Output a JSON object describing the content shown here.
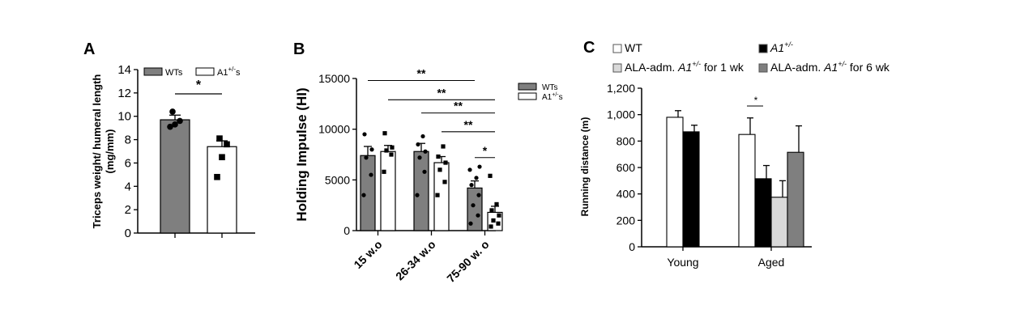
{
  "panels": {
    "a": "A",
    "b": "B",
    "c": "C"
  },
  "chart_data": [
    {
      "type": "bar",
      "panel": "A",
      "ylabel": "Triceps weight/ humeral length\n(mg/mm)",
      "ylim": [
        0,
        14
      ],
      "yticks": [
        0,
        2,
        4,
        6,
        8,
        10,
        12,
        14
      ],
      "categories": [
        "WTs",
        "A1+/-s"
      ],
      "values": [
        9.7,
        7.4
      ],
      "errors": [
        0.4,
        0.5
      ],
      "colors": [
        "#7f7f7f",
        "#ffffff"
      ],
      "legend": [
        {
          "label": "WTs",
          "sup": "",
          "suffix": ""
        },
        {
          "label": "A1",
          "sup": "+/-",
          "suffix": "s"
        }
      ],
      "points": [
        [
          9.1,
          9.3,
          9.6,
          10.4
        ],
        [
          4.8,
          6.5,
          7.6,
          8.1
        ]
      ],
      "markers": [
        "circle",
        "square"
      ],
      "significance": [
        {
          "between": [
            0,
            1
          ],
          "label": "*"
        }
      ]
    },
    {
      "type": "bar",
      "panel": "B",
      "ylabel": "Holding Impulse (HI)",
      "ylim": [
        0,
        15000
      ],
      "yticks": [
        0,
        5000,
        10000,
        15000
      ],
      "categories": [
        "15 w.o",
        "26-34 w.o",
        "75-90 w. o"
      ],
      "series": [
        {
          "name": "WTs",
          "values": [
            7400,
            7800,
            4200
          ],
          "errors": [
            900,
            800,
            700
          ],
          "color": "#7f7f7f",
          "points": [
            [
              3500,
              5500,
              7200,
              8000,
              9500
            ],
            [
              3500,
              5800,
              7200,
              7800,
              8500,
              9300
            ],
            [
              700,
              1500,
              2500,
              3500,
              4500,
              5200,
              6000,
              6300
            ]
          ]
        },
        {
          "name": "A1+/-s",
          "values": [
            7800,
            6700,
            1800
          ],
          "errors": [
            600,
            600,
            600
          ],
          "color": "#ffffff",
          "points": [
            [
              5800,
              7500,
              7900,
              8200,
              9600
            ],
            [
              3500,
              4800,
              6000,
              6700,
              7300,
              8300
            ],
            [
              400,
              700,
              1000,
              1500,
              2000,
              2600,
              5400
            ]
          ]
        }
      ],
      "legend": [
        {
          "label": "WTs",
          "sup": "",
          "suffix": ""
        },
        {
          "label": "A1",
          "sup": "+/-",
          "suffix": "s"
        }
      ],
      "significance": [
        {
          "label": "**",
          "y": 14800
        },
        {
          "label": "**",
          "y": 12900
        },
        {
          "label": "**",
          "y": 11600
        },
        {
          "label": "**",
          "y": 9750
        },
        {
          "label": "*",
          "y": 7200
        }
      ]
    },
    {
      "type": "bar",
      "panel": "C",
      "ylabel": "Running distance (m)",
      "ylim": [
        0,
        1200
      ],
      "yticks": [
        "0",
        "200",
        "400",
        "600",
        "800",
        "1,000",
        "1,200"
      ],
      "categories": [
        "Young",
        "Aged"
      ],
      "series": [
        {
          "name": "WT",
          "color": "#ffffff",
          "values": [
            980,
            850
          ],
          "errors": [
            50,
            125
          ]
        },
        {
          "name": "A1+/-",
          "color": "#000000",
          "values": [
            870,
            515
          ],
          "errors": [
            50,
            100
          ]
        },
        {
          "name": "ALA-adm. A1+/- for 1 wk",
          "color": "#d9d9d9",
          "values": [
            null,
            375
          ],
          "errors": [
            null,
            125
          ]
        },
        {
          "name": "ALA-adm. A1+/- for 6 wk",
          "color": "#7f7f7f",
          "values": [
            null,
            715
          ],
          "errors": [
            null,
            200
          ]
        }
      ],
      "legend": [
        {
          "pre": "WT",
          "ital": "",
          "sup": "",
          "post": ""
        },
        {
          "pre": "",
          "ital": "A1",
          "sup": "+/-",
          "post": ""
        },
        {
          "pre": "ALA-adm. ",
          "ital": "A1",
          "sup": "+/-",
          "post": " for 1 wk"
        },
        {
          "pre": "ALA-adm. ",
          "ital": "A1",
          "sup": "+/-",
          "post": " for 6 wk"
        }
      ],
      "significance": [
        {
          "label": "*",
          "between": [
            "WT",
            "A1+/-"
          ],
          "category": "Aged"
        }
      ]
    }
  ]
}
